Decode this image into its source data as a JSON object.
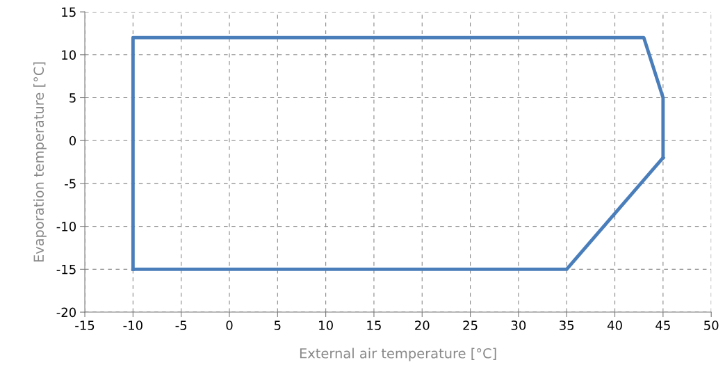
{
  "chart_data": {
    "type": "line",
    "xlabel": "External air temperature [°C]",
    "ylabel": "Evaporation temperature [°C]",
    "series": [
      {
        "color": "#4a7ebb",
        "x": [
          -10,
          -10,
          43,
          45,
          45
        ],
        "values": [
          -15,
          12,
          12,
          5,
          -2
        ]
      },
      {
        "color": "#4a7ebb",
        "x": [
          -10,
          35,
          45
        ],
        "values": [
          -15,
          -15,
          -2
        ]
      }
    ],
    "xlim": [
      -15,
      50
    ],
    "xticks": [
      -15,
      -10,
      -5,
      0,
      5,
      10,
      15,
      20,
      25,
      30,
      35,
      40,
      45,
      50
    ],
    "ylim": [
      -20,
      15
    ],
    "yticks": [
      -20,
      -15,
      -10,
      -5,
      0,
      5,
      10,
      15
    ],
    "grid": true,
    "marker": "none",
    "line_style": "solid"
  }
}
